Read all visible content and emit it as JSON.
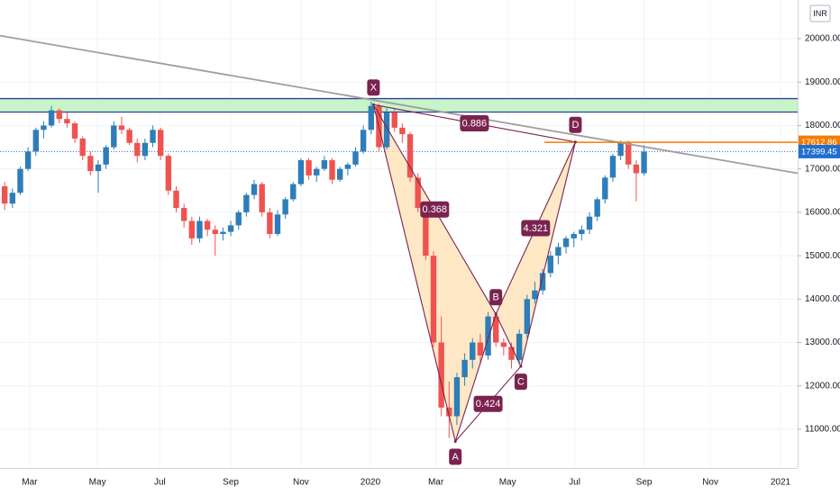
{
  "chart_data": {
    "type": "candlestick",
    "currency": "INR",
    "xlim": [
      -0.6,
      101.7
    ],
    "xticks": [
      {
        "value": 3.2,
        "label": "Mar"
      },
      {
        "value": 11.9,
        "label": "May"
      },
      {
        "value": 19.9,
        "label": "Jul"
      },
      {
        "value": 29.0,
        "label": "Sep"
      },
      {
        "value": 38.0,
        "label": "Nov"
      },
      {
        "value": 46.9,
        "label": "2020"
      },
      {
        "value": 55.3,
        "label": "Mar"
      },
      {
        "value": 64.5,
        "label": "May"
      },
      {
        "value": 73.1,
        "label": "Jul"
      },
      {
        "value": 82.0,
        "label": "Sep"
      },
      {
        "value": 90.5,
        "label": "Nov"
      },
      {
        "value": 99.5,
        "label": "2021"
      }
    ],
    "ylim": [
      10108,
      20892
    ],
    "yticks": [
      {
        "value": 11000,
        "label": "11000.00"
      },
      {
        "value": 12000,
        "label": "12000.00"
      },
      {
        "value": 13000,
        "label": "13000.00"
      },
      {
        "value": 14000,
        "label": "14000.00"
      },
      {
        "value": 15000,
        "label": "15000.00"
      },
      {
        "value": 16000,
        "label": "16000.00"
      },
      {
        "value": 17000,
        "label": "17000.00"
      },
      {
        "value": 18000,
        "label": "18000.00"
      },
      {
        "value": 19000,
        "label": "19000.00"
      },
      {
        "value": 20000,
        "label": "20000.00"
      }
    ],
    "grid": true,
    "up_color": "#2e7db8",
    "down_color": "#ef5350",
    "categories": [
      null,
      null,
      null,
      null,
      null,
      null,
      null,
      null,
      null,
      null,
      null,
      null,
      null,
      null,
      null,
      null,
      null,
      null,
      null,
      null,
      null,
      null,
      null,
      null,
      null,
      null,
      null,
      null,
      null,
      null,
      null,
      null,
      null,
      null,
      null,
      null,
      null,
      null,
      null,
      null,
      null,
      null,
      null,
      null,
      null,
      null,
      null,
      null,
      null,
      null,
      null,
      null,
      null,
      null,
      null,
      null,
      null,
      null,
      null,
      null,
      null,
      null,
      null,
      null,
      null,
      null,
      null,
      null,
      null,
      null,
      null,
      null,
      null,
      null,
      null,
      null,
      null,
      null,
      null,
      null,
      null,
      null,
      null
    ],
    "ohlc": [
      [
        16600,
        16700,
        16050,
        16200
      ],
      [
        16200,
        16550,
        16100,
        16450
      ],
      [
        16450,
        17050,
        16400,
        17000
      ],
      [
        17000,
        17500,
        16950,
        17400
      ],
      [
        17400,
        17950,
        17300,
        17900
      ],
      [
        17900,
        18100,
        17700,
        18000
      ],
      [
        18000,
        18450,
        17950,
        18350
      ],
      [
        18350,
        18400,
        18050,
        18150
      ],
      [
        18150,
        18300,
        17950,
        18050
      ],
      [
        18050,
        18100,
        17600,
        17700
      ],
      [
        17700,
        17750,
        17200,
        17300
      ],
      [
        17300,
        17400,
        16850,
        16950
      ],
      [
        16950,
        17200,
        16450,
        17100
      ],
      [
        17100,
        17550,
        17000,
        17500
      ],
      [
        17500,
        18100,
        17450,
        18000
      ],
      [
        18000,
        18200,
        17800,
        17900
      ],
      [
        17900,
        17950,
        17550,
        17600
      ],
      [
        17600,
        17700,
        17150,
        17300
      ],
      [
        17300,
        17700,
        17200,
        17600
      ],
      [
        17600,
        18000,
        17500,
        17900
      ],
      [
        17900,
        17950,
        17200,
        17300
      ],
      [
        17300,
        17350,
        16400,
        16500
      ],
      [
        16500,
        16600,
        16000,
        16100
      ],
      [
        16100,
        16200,
        15650,
        15800
      ],
      [
        15800,
        15900,
        15250,
        15400
      ],
      [
        15400,
        15900,
        15300,
        15800
      ],
      [
        15800,
        15850,
        15450,
        15600
      ],
      [
        15600,
        15700,
        15000,
        15500
      ],
      [
        15500,
        15650,
        15350,
        15550
      ],
      [
        15550,
        15800,
        15450,
        15700
      ],
      [
        15700,
        16050,
        15600,
        16000
      ],
      [
        16000,
        16450,
        15900,
        16400
      ],
      [
        16400,
        16750,
        16300,
        16650
      ],
      [
        16650,
        16700,
        15900,
        16000
      ],
      [
        16000,
        16100,
        15400,
        15500
      ],
      [
        15500,
        16050,
        15450,
        15950
      ],
      [
        15950,
        16350,
        15850,
        16300
      ],
      [
        16300,
        16700,
        16250,
        16650
      ],
      [
        16650,
        17250,
        16600,
        17200
      ],
      [
        17200,
        17250,
        16750,
        16850
      ],
      [
        16850,
        17050,
        16700,
        17000
      ],
      [
        17000,
        17300,
        16950,
        17200
      ],
      [
        17200,
        17250,
        16650,
        16750
      ],
      [
        16750,
        17050,
        16700,
        17000
      ],
      [
        17000,
        17150,
        16850,
        17100
      ],
      [
        17100,
        17500,
        17050,
        17400
      ],
      [
        17400,
        18000,
        17350,
        17900
      ],
      [
        17900,
        18550,
        17800,
        18450
      ],
      [
        18450,
        18500,
        17400,
        17500
      ],
      [
        17500,
        18400,
        17450,
        18300
      ],
      [
        18300,
        18400,
        17850,
        17950
      ],
      [
        17950,
        18050,
        17600,
        17800
      ],
      [
        17800,
        17850,
        16700,
        16800
      ],
      [
        16800,
        16900,
        16000,
        16100
      ],
      [
        16100,
        16200,
        14900,
        15000
      ],
      [
        15000,
        15100,
        12900,
        13000
      ],
      [
        13000,
        13600,
        11300,
        11500
      ],
      [
        11500,
        12100,
        10800,
        11300
      ],
      [
        11300,
        12300,
        11100,
        12200
      ],
      [
        12200,
        12750,
        12000,
        12600
      ],
      [
        12600,
        13100,
        12400,
        13000
      ],
      [
        13000,
        13200,
        12500,
        12700
      ],
      [
        12700,
        13700,
        12600,
        13600
      ],
      [
        13600,
        13700,
        12900,
        13000
      ],
      [
        13000,
        13100,
        12700,
        12900
      ],
      [
        12900,
        13000,
        12400,
        12600
      ],
      [
        12600,
        13300,
        12500,
        13200
      ],
      [
        13200,
        14100,
        13100,
        14000
      ],
      [
        14000,
        14400,
        13900,
        14200
      ],
      [
        14200,
        14700,
        14100,
        14600
      ],
      [
        14600,
        15100,
        14500,
        15000
      ],
      [
        15000,
        15300,
        14800,
        15200
      ],
      [
        15200,
        15450,
        15050,
        15400
      ],
      [
        15400,
        15550,
        15200,
        15500
      ],
      [
        15500,
        15700,
        15350,
        15600
      ],
      [
        15600,
        16000,
        15500,
        15900
      ],
      [
        15900,
        16350,
        15800,
        16300
      ],
      [
        16300,
        16850,
        16200,
        16800
      ],
      [
        16800,
        17350,
        16700,
        17300
      ],
      [
        17300,
        17650,
        17200,
        17600
      ],
      [
        17600,
        17650,
        17000,
        17100
      ],
      [
        17100,
        17200,
        16250,
        16900
      ],
      [
        16900,
        17550,
        16850,
        17400
      ]
    ],
    "zone": {
      "values": [
        18310,
        18620
      ],
      "color": "#c8f5c8",
      "line_color": "#303f9f"
    },
    "trendline": {
      "x": [
        -0.6,
        101.7
      ],
      "values": [
        20070,
        16900
      ],
      "color": "#9e9e9e"
    },
    "level": {
      "value": 17612.86,
      "x_start": 69.2,
      "color": "#f57c00"
    },
    "last_price": {
      "value": 17399.45,
      "color": "#1e6fd0"
    },
    "pattern": {
      "points": [
        {
          "label": "X",
          "x": 47.3,
          "value": 18480
        },
        {
          "label": "A",
          "x": 57.8,
          "value": 10720
        },
        {
          "label": "B",
          "x": 63.0,
          "value": 13650
        },
        {
          "label": "C",
          "x": 66.2,
          "value": 12450
        },
        {
          "label": "D",
          "x": 73.2,
          "value": 17620
        }
      ],
      "ratios": [
        {
          "value": 0.886,
          "legs": [
            0,
            4
          ]
        },
        {
          "value": 0.368,
          "legs": [
            0,
            2
          ]
        },
        {
          "value": 4.321,
          "legs": [
            2,
            4
          ]
        },
        {
          "value": 0.424,
          "legs": [
            1,
            3
          ]
        }
      ],
      "color": "#7a2350",
      "fill": "#ffe0b2"
    }
  }
}
